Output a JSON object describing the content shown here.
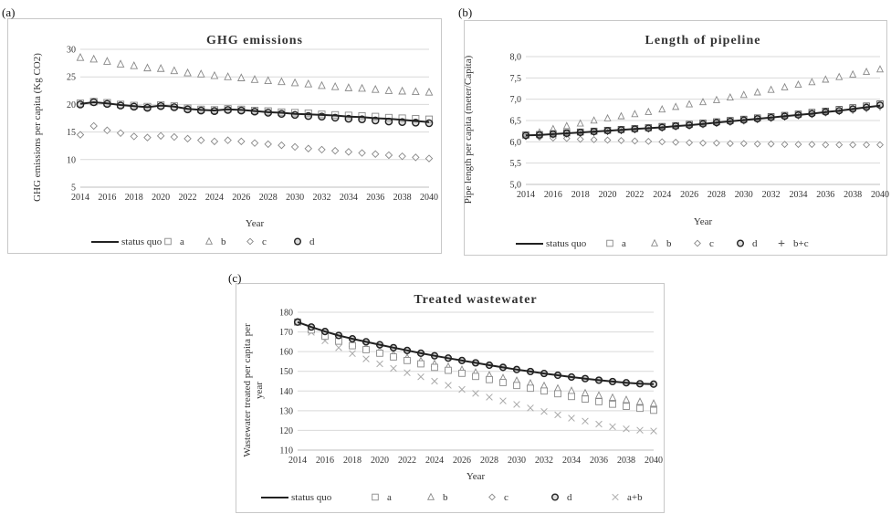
{
  "panels": [
    {
      "label": "(a)"
    },
    {
      "label": "(b)"
    },
    {
      "label": "(c)"
    }
  ],
  "chart_data": [
    {
      "type": "line",
      "title": "GHG emissions",
      "xlabel": "Year",
      "ylabel": "GHG emissions per capita (Kg CO2)",
      "xlim": [
        2014,
        2040
      ],
      "ylim": [
        5,
        30
      ],
      "yticks": [
        "5",
        "10",
        "15",
        "20",
        "25",
        "30"
      ],
      "xticks": [
        "2014",
        "2016",
        "2018",
        "2020",
        "2022",
        "2024",
        "2026",
        "2028",
        "2030",
        "2032",
        "2034",
        "2036",
        "2038",
        "2040"
      ],
      "grid": true,
      "legend_position": "bottom",
      "x": [
        2014,
        2015,
        2016,
        2017,
        2018,
        2019,
        2020,
        2021,
        2022,
        2023,
        2024,
        2025,
        2026,
        2027,
        2028,
        2029,
        2030,
        2031,
        2032,
        2033,
        2034,
        2035,
        2036,
        2037,
        2038,
        2039,
        2040
      ],
      "series": [
        {
          "name": "status quo",
          "marker": "line",
          "values": [
            20.1,
            20.4,
            20.2,
            19.9,
            19.7,
            19.5,
            19.8,
            19.6,
            19.2,
            19.0,
            18.9,
            19.1,
            19.0,
            18.8,
            18.6,
            18.5,
            18.3,
            18.2,
            18.1,
            18.0,
            17.8,
            17.7,
            17.5,
            17.4,
            17.2,
            17.0,
            16.8
          ]
        },
        {
          "name": "a",
          "marker": "square",
          "values": [
            20.2,
            20.5,
            20.3,
            20.0,
            19.8,
            19.6,
            19.9,
            19.7,
            19.3,
            19.1,
            19.0,
            19.2,
            19.1,
            18.9,
            18.8,
            18.6,
            18.5,
            18.4,
            18.2,
            18.1,
            18.0,
            17.9,
            17.8,
            17.6,
            17.5,
            17.4,
            17.3
          ]
        },
        {
          "name": "b",
          "marker": "triangle",
          "values": [
            28.5,
            28.2,
            27.8,
            27.3,
            27.0,
            26.6,
            26.5,
            26.1,
            25.7,
            25.5,
            25.2,
            25.0,
            24.8,
            24.5,
            24.3,
            24.1,
            23.9,
            23.7,
            23.4,
            23.2,
            23.0,
            22.9,
            22.7,
            22.5,
            22.4,
            22.3,
            22.2
          ]
        },
        {
          "name": "c",
          "marker": "diamond",
          "values": [
            14.5,
            16.1,
            15.3,
            14.8,
            14.2,
            14.0,
            14.3,
            14.1,
            13.8,
            13.5,
            13.3,
            13.5,
            13.3,
            13.0,
            12.8,
            12.6,
            12.3,
            12.0,
            11.8,
            11.6,
            11.4,
            11.2,
            11.0,
            10.8,
            10.6,
            10.4,
            10.2
          ]
        },
        {
          "name": "d",
          "marker": "circle",
          "values": [
            20.0,
            20.4,
            20.1,
            19.8,
            19.6,
            19.4,
            19.7,
            19.5,
            19.1,
            18.9,
            18.8,
            19.0,
            18.9,
            18.7,
            18.5,
            18.3,
            18.1,
            17.9,
            17.8,
            17.6,
            17.4,
            17.3,
            17.1,
            16.9,
            16.8,
            16.7,
            16.6
          ]
        }
      ]
    },
    {
      "type": "line",
      "title": "Length of pipeline",
      "xlabel": "Year",
      "ylabel": "Pipe length per capita (meter/Capita)",
      "xlim": [
        2014,
        2040
      ],
      "ylim": [
        5.0,
        8.0
      ],
      "yticks": [
        "5,0",
        "5,5",
        "6,0",
        "6,5",
        "7,0",
        "7,5",
        "8,0"
      ],
      "xticks": [
        "2014",
        "2016",
        "2018",
        "2020",
        "2022",
        "2024",
        "2026",
        "2028",
        "2030",
        "2032",
        "2034",
        "2036",
        "2038",
        "2040"
      ],
      "grid": true,
      "legend_position": "bottom",
      "x": [
        2014,
        2015,
        2016,
        2017,
        2018,
        2019,
        2020,
        2021,
        2022,
        2023,
        2024,
        2025,
        2026,
        2027,
        2028,
        2029,
        2030,
        2031,
        2032,
        2033,
        2034,
        2035,
        2036,
        2037,
        2038,
        2039,
        2040
      ],
      "series": [
        {
          "name": "status quo",
          "marker": "line",
          "values": [
            6.15,
            6.16,
            6.18,
            6.2,
            6.22,
            6.24,
            6.26,
            6.28,
            6.3,
            6.32,
            6.34,
            6.37,
            6.39,
            6.42,
            6.45,
            6.48,
            6.51,
            6.54,
            6.57,
            6.6,
            6.63,
            6.66,
            6.7,
            6.73,
            6.77,
            6.81,
            6.85
          ]
        },
        {
          "name": "a",
          "marker": "square",
          "values": [
            6.16,
            6.17,
            6.19,
            6.21,
            6.23,
            6.25,
            6.27,
            6.29,
            6.31,
            6.33,
            6.36,
            6.38,
            6.41,
            6.44,
            6.47,
            6.5,
            6.53,
            6.56,
            6.59,
            6.62,
            6.65,
            6.69,
            6.72,
            6.76,
            6.8,
            6.84,
            6.89
          ]
        },
        {
          "name": "b",
          "marker": "triangle",
          "values": [
            6.15,
            6.22,
            6.3,
            6.37,
            6.43,
            6.5,
            6.55,
            6.6,
            6.65,
            6.7,
            6.76,
            6.82,
            6.88,
            6.93,
            6.98,
            7.04,
            7.1,
            7.16,
            7.22,
            7.28,
            7.34,
            7.4,
            7.46,
            7.52,
            7.58,
            7.64,
            7.7
          ]
        },
        {
          "name": "c",
          "marker": "diamond",
          "values": [
            6.12,
            6.11,
            6.09,
            6.08,
            6.06,
            6.05,
            6.04,
            6.03,
            6.02,
            6.01,
            6.0,
            5.99,
            5.98,
            5.97,
            5.97,
            5.96,
            5.96,
            5.95,
            5.95,
            5.94,
            5.94,
            5.94,
            5.93,
            5.93,
            5.93,
            5.93,
            5.93
          ]
        },
        {
          "name": "d",
          "marker": "circle",
          "values": [
            6.15,
            6.16,
            6.18,
            6.2,
            6.22,
            6.24,
            6.26,
            6.28,
            6.3,
            6.32,
            6.34,
            6.37,
            6.39,
            6.42,
            6.45,
            6.48,
            6.51,
            6.54,
            6.57,
            6.6,
            6.63,
            6.66,
            6.7,
            6.73,
            6.77,
            6.81,
            6.86
          ]
        },
        {
          "name": "b+c",
          "marker": "plus",
          "values": [
            6.12,
            6.13,
            6.15,
            6.17,
            6.19,
            6.21,
            6.23,
            6.25,
            6.27,
            6.29,
            6.31,
            6.34,
            6.36,
            6.39,
            6.42,
            6.45,
            6.48,
            6.51,
            6.54,
            6.57,
            6.6,
            6.63,
            6.67,
            6.7,
            6.73,
            6.77,
            6.81
          ]
        }
      ]
    },
    {
      "type": "line",
      "title": "Treated wastewater",
      "xlabel": "Year",
      "ylabel": "Wastewater treated per capita per year",
      "xlim": [
        2014,
        2040
      ],
      "ylim": [
        110,
        180
      ],
      "yticks": [
        "110",
        "120",
        "130",
        "140",
        "150",
        "160",
        "170",
        "180"
      ],
      "xticks": [
        "2014",
        "2016",
        "2018",
        "2020",
        "2022",
        "2024",
        "2026",
        "2028",
        "2030",
        "2032",
        "2034",
        "2036",
        "2038",
        "2040"
      ],
      "grid": true,
      "legend_position": "bottom",
      "x": [
        2014,
        2015,
        2016,
        2017,
        2018,
        2019,
        2020,
        2021,
        2022,
        2023,
        2024,
        2025,
        2026,
        2027,
        2028,
        2029,
        2030,
        2031,
        2032,
        2033,
        2034,
        2035,
        2036,
        2037,
        2038,
        2039,
        2040
      ],
      "series": [
        {
          "name": "status quo",
          "marker": "line",
          "values": [
            175,
            172.5,
            170.2,
            168.2,
            166.5,
            165,
            163.5,
            162,
            160.6,
            159.2,
            157.9,
            156.7,
            155.5,
            154.3,
            153.1,
            152,
            150.9,
            149.9,
            148.9,
            148,
            147.1,
            146.3,
            145.5,
            144.8,
            144.2,
            143.7,
            143.5
          ]
        },
        {
          "name": "a",
          "marker": "square",
          "values": [
            175,
            171,
            167.8,
            165.3,
            163,
            161,
            159.2,
            157.3,
            155.5,
            153.8,
            152,
            150.5,
            149,
            147.4,
            145.8,
            144.3,
            142.8,
            141.4,
            140,
            138.6,
            137.2,
            135.9,
            134.6,
            133.3,
            132.2,
            131.2,
            130.2
          ]
        },
        {
          "name": "b",
          "marker": "triangle",
          "values": [
            175,
            171.5,
            168.5,
            166,
            164,
            162.2,
            160.4,
            158.6,
            156.9,
            155.3,
            153.8,
            152.3,
            150.8,
            149.4,
            148,
            146.6,
            145.2,
            143.9,
            142.6,
            141.3,
            140.1,
            138.9,
            137.7,
            136.6,
            135.5,
            134.5,
            133.6
          ]
        },
        {
          "name": "c",
          "marker": "diamond",
          "values": [
            175,
            172.5,
            170.2,
            168.2,
            166.5,
            165,
            163.5,
            162,
            160.6,
            159.2,
            157.9,
            156.7,
            155.5,
            154.3,
            153.1,
            152,
            150.9,
            149.9,
            148.9,
            148,
            147.1,
            146.3,
            145.5,
            144.8,
            144.2,
            143.7,
            143.5
          ]
        },
        {
          "name": "d",
          "marker": "circle",
          "values": [
            175,
            172.5,
            170.2,
            168.2,
            166.5,
            165,
            163.5,
            162,
            160.6,
            159.2,
            157.9,
            156.7,
            155.5,
            154.3,
            153.1,
            152,
            150.9,
            149.9,
            148.9,
            148,
            147.1,
            146.3,
            145.5,
            144.8,
            144.2,
            143.7,
            143.5
          ]
        },
        {
          "name": "a+b",
          "marker": "x",
          "values": [
            175,
            169.8,
            165.5,
            162,
            159,
            156.3,
            153.8,
            151.5,
            149.3,
            147.2,
            145,
            142.9,
            140.8,
            138.8,
            136.9,
            135,
            133.2,
            131.4,
            129.6,
            127.9,
            126.2,
            124.7,
            123.2,
            121.9,
            120.8,
            120.1,
            119.7
          ]
        }
      ]
    }
  ]
}
